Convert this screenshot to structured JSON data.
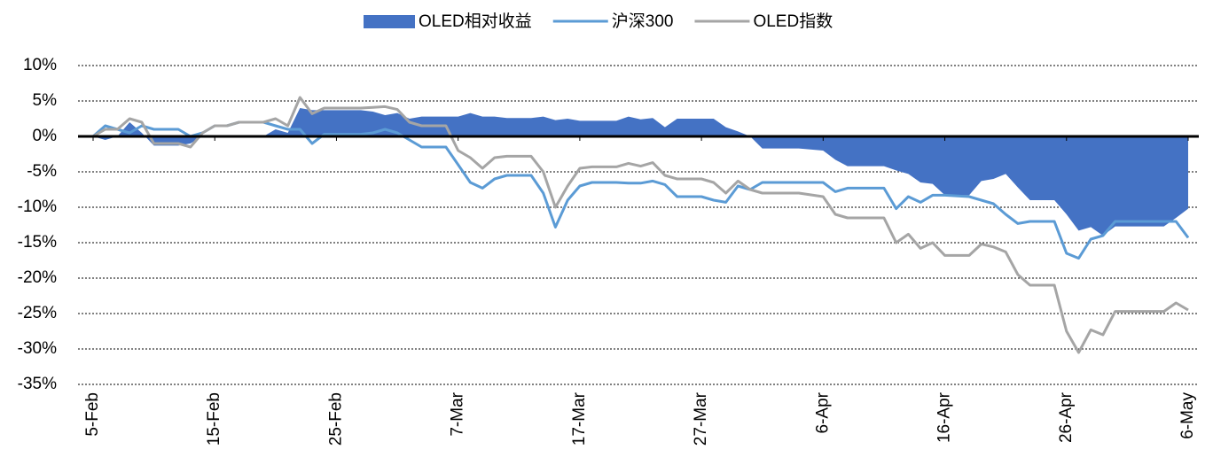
{
  "chart_data": {
    "type": "line",
    "x": [
      "5-Feb",
      "6-Feb",
      "7-Feb",
      "8-Feb",
      "9-Feb",
      "10-Feb",
      "11-Feb",
      "12-Feb",
      "13-Feb",
      "14-Feb",
      "15-Feb",
      "16-Feb",
      "17-Feb",
      "19-Feb",
      "20-Feb",
      "21-Feb",
      "22-Feb",
      "23-Feb",
      "24-Feb",
      "27-Feb",
      "28-Feb",
      "1-Mar",
      "2-Mar",
      "3-Mar",
      "4-Mar",
      "6-Mar",
      "7-Mar",
      "8-Mar",
      "9-Mar",
      "10-Mar",
      "11-Mar",
      "13-Mar",
      "14-Mar",
      "15-Mar",
      "16-Mar",
      "17-Mar",
      "18-Mar",
      "20-Mar",
      "21-Mar",
      "22-Mar",
      "23-Mar",
      "24-Mar",
      "25-Mar",
      "27-Mar",
      "28-Mar",
      "29-Mar",
      "30-Mar",
      "31-Mar",
      "1-Apr",
      "4-Apr",
      "6-Apr",
      "7-Apr",
      "8-Apr",
      "11-Apr",
      "12-Apr",
      "13-Apr",
      "14-Apr",
      "15-Apr",
      "16-Apr",
      "18-Apr",
      "19-Apr",
      "20-Apr",
      "21-Apr",
      "22-Apr",
      "23-Apr",
      "25-Apr",
      "26-Apr",
      "27-Apr",
      "28-Apr",
      "29-Apr",
      "30-Apr",
      "4-May",
      "5-May",
      "6-May"
    ],
    "series": [
      {
        "name": "OLED相对收益",
        "kind": "area",
        "color": "#4472c4",
        "values": [
          0,
          -0.5,
          0,
          2,
          0.5,
          -1.3,
          -1.3,
          -1.3,
          -1,
          0,
          0,
          0,
          0,
          0,
          1,
          0.5,
          4,
          3.7,
          3.7,
          3.7,
          3.5,
          3,
          3.3,
          2.5,
          2.8,
          2.8,
          2.8,
          3.3,
          2.8,
          2.8,
          2.6,
          2.6,
          2.8,
          2.3,
          2.5,
          2.2,
          2.2,
          2.2,
          2.8,
          2.4,
          2.6,
          1.3,
          2.5,
          2.5,
          2.5,
          1.3,
          0.7,
          0,
          -1.7,
          -1.7,
          -2,
          -3.3,
          -4.2,
          -4.2,
          -4.8,
          -5.3,
          -6.5,
          -6.7,
          -8.3,
          -8.3,
          -6.3,
          -6,
          -5.3,
          -7.2,
          -9,
          -9,
          -11,
          -13.3,
          -12.8,
          -14,
          -12.7,
          -12.7,
          -11.5,
          -10.2
        ]
      },
      {
        "name": "沪深300",
        "kind": "line",
        "color": "#5b9bd5",
        "values": [
          0,
          1.5,
          1,
          0.5,
          1.5,
          1,
          1,
          1,
          0,
          0.5,
          1.5,
          1.5,
          2,
          2,
          1.5,
          1,
          1,
          -1,
          0.3,
          0.3,
          0.5,
          1,
          0.5,
          -0.5,
          -1.5,
          -1.5,
          -4,
          -6.5,
          -7.3,
          -6,
          -5.5,
          -5.5,
          -8,
          -12.8,
          -9,
          -7,
          -6.5,
          -6.5,
          -6.6,
          -6.6,
          -6.3,
          -6.8,
          -8.5,
          -8.5,
          -9,
          -9.3,
          -7,
          -7.5,
          -6.5,
          -6.5,
          -6.5,
          -7.8,
          -7.3,
          -7.3,
          -10.2,
          -8.5,
          -9.3,
          -8.3,
          -8.3,
          -8.5,
          -9,
          -9.5,
          -11,
          -12.3,
          -12,
          -12,
          -16.5,
          -17.2,
          -14.5,
          -14,
          -12,
          -12,
          -12,
          -14.3
        ]
      },
      {
        "name": "OLED指数",
        "kind": "line",
        "color": "#a5a5a5",
        "values": [
          0,
          1,
          1,
          2.5,
          2,
          -1,
          -1,
          -1,
          -1.5,
          0.5,
          1.5,
          1.5,
          2,
          2,
          2.5,
          1.5,
          5.5,
          3.2,
          4,
          4,
          4.1,
          4.2,
          3.8,
          2,
          1.5,
          1.5,
          -2,
          -3,
          -4.5,
          -3,
          -2.8,
          -2.8,
          -5,
          -10,
          -7,
          -4.5,
          -4.3,
          -4.3,
          -3.8,
          -4.2,
          -3.7,
          -5.5,
          -6,
          -6,
          -6.5,
          -8,
          -6.3,
          -7.5,
          -8,
          -8,
          -8.5,
          -11,
          -11.5,
          -11.5,
          -15,
          -13.8,
          -15.8,
          -15,
          -16.8,
          -16.8,
          -15.2,
          -15.6,
          -16.3,
          -19.5,
          -21,
          -21,
          -27.5,
          -30.5,
          -27.3,
          -28,
          -24.7,
          -24.7,
          -23.5,
          -24.5
        ]
      }
    ],
    "xlim": [
      "5-Feb",
      "6-May"
    ],
    "xticks": [
      "5-Feb",
      "15-Feb",
      "25-Feb",
      "7-Mar",
      "17-Mar",
      "27-Mar",
      "6-Apr",
      "16-Apr",
      "26-Apr",
      "6-May"
    ],
    "ylim": [
      -35,
      10
    ],
    "yticks": [
      {
        "value": 10,
        "label": "10%"
      },
      {
        "value": 5,
        "label": "5%"
      },
      {
        "value": 0,
        "label": "0%"
      },
      {
        "value": -5,
        "label": "-5%"
      },
      {
        "value": -10,
        "label": "-10%"
      },
      {
        "value": -15,
        "label": "-15%"
      },
      {
        "value": -20,
        "label": "-20%"
      },
      {
        "value": -25,
        "label": "-25%"
      },
      {
        "value": -30,
        "label": "-30%"
      },
      {
        "value": -35,
        "label": "-35%"
      }
    ],
    "grid": true,
    "legend": "top"
  }
}
